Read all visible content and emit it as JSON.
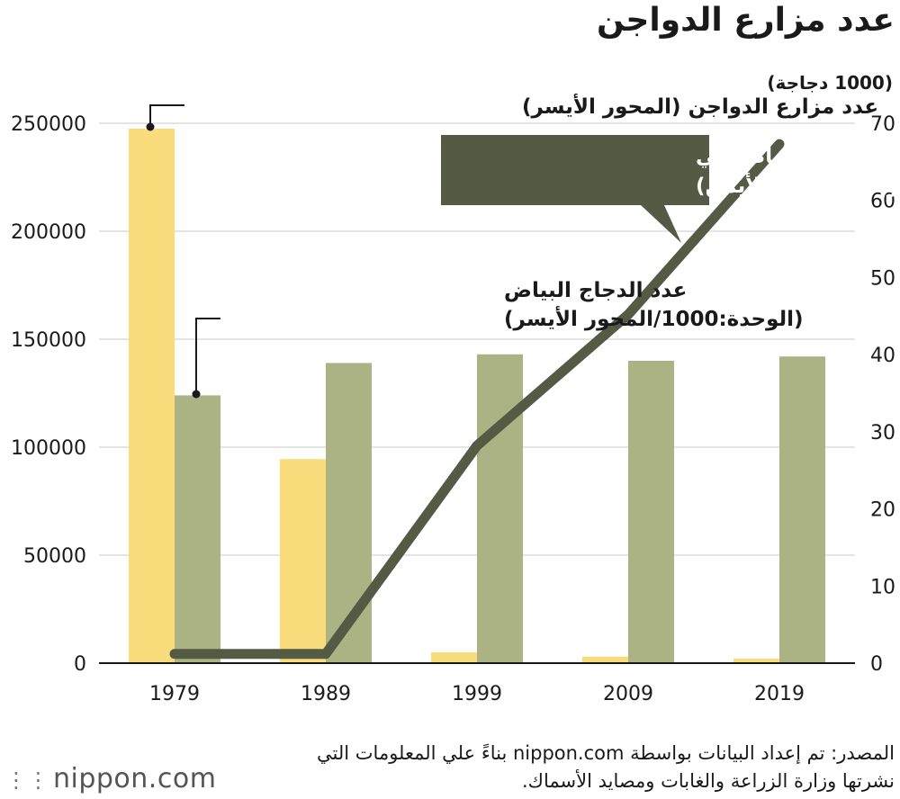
{
  "title": "عدد مزارع الدواجن",
  "right_axis_unit": "(1000 دجاجة)",
  "source_line1": "المصدر: تم إعداد البيانات بواسطة nippon.com بناءً علي المعلومات التي",
  "source_line2": "نشرتها وزارة الزراعة والغابات ومصايد الأسماك.",
  "logo": {
    "mark": "⋮⋮",
    "text": "nippon.com"
  },
  "colors": {
    "farms": "#f9dc7c",
    "hens": "#abb385",
    "line": "#545a44",
    "callout_bg": "#545a44"
  },
  "chart_data": {
    "type": "bar",
    "categories": [
      "1979",
      "1989",
      "1999",
      "2009",
      "2019"
    ],
    "left_axis": {
      "ticks": [
        0,
        50000,
        100000,
        150000,
        200000,
        250000
      ],
      "range": [
        0,
        250000
      ]
    },
    "right_axis": {
      "ticks": [
        0,
        10,
        20,
        30,
        40,
        50,
        60,
        70
      ],
      "range": [
        0,
        70
      ]
    },
    "series": [
      {
        "name": "عدد مزارع الدواجن (المحور الأيسر)",
        "type": "bar",
        "axis": "left",
        "values": [
          247500,
          94500,
          5000,
          3000,
          2100
        ]
      },
      {
        "name": "عدد الدجاج البياض (الوحدة:1000/المحور الأيسر)",
        "type": "bar",
        "axis": "left",
        "values": [
          124000,
          139000,
          143000,
          140000,
          142000
        ]
      },
      {
        "name": "عدد الدجاج البياض في كل مزرعة (المحور الأيمن)",
        "type": "line",
        "axis": "right",
        "values": [
          1.2,
          1.2,
          28.2,
          45.2,
          67.3
        ]
      }
    ],
    "annotations": {
      "farms_label": "عدد مزارع الدواجن (المحور الأيسر)",
      "hens_label_line1": "عدد الدجاج البياض",
      "hens_label_line2": "(الوحدة:1000/المحور الأيسر)",
      "per_farm_label_line1": "عدد الدجاج البياض في",
      "per_farm_label_line2": "كل مزرعة (المحور الأيمن)"
    }
  }
}
